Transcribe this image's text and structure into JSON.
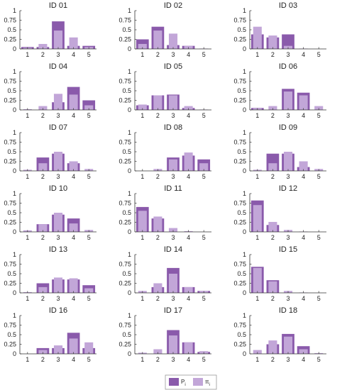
{
  "colors": {
    "p": "#8a5aab",
    "pi": "#c2a6d8",
    "axis": "#333333"
  },
  "legend": {
    "p_label": "P",
    "p_sub": "i",
    "pi_label": "π",
    "pi_sub": "i"
  },
  "chart_data": [
    {
      "type": "bar",
      "title": "ID 01",
      "categories": [
        "1",
        "2",
        "3",
        "4",
        "5"
      ],
      "ylim": [
        0,
        1
      ],
      "yticks": [
        "0",
        "0.25",
        "0.5",
        "0.75",
        "1"
      ],
      "series": [
        {
          "name": "P",
          "values": [
            0.05,
            0.05,
            0.72,
            0.08,
            0.08
          ]
        },
        {
          "name": "π",
          "values": [
            0.03,
            0.13,
            0.48,
            0.3,
            0.05
          ]
        }
      ]
    },
    {
      "type": "bar",
      "title": "ID 02",
      "categories": [
        "1",
        "2",
        "3",
        "4",
        "5"
      ],
      "ylim": [
        0,
        1
      ],
      "yticks": [
        "0",
        "0.25",
        "0.5",
        "0.75",
        "1"
      ],
      "series": [
        {
          "name": "P",
          "values": [
            0.25,
            0.58,
            0.1,
            0.08,
            0.0
          ]
        },
        {
          "name": "π",
          "values": [
            0.13,
            0.48,
            0.4,
            0.08,
            0.01
          ]
        }
      ]
    },
    {
      "type": "bar",
      "title": "ID 03",
      "categories": [
        "1",
        "2",
        "3",
        "4",
        "5"
      ],
      "ylim": [
        0,
        1
      ],
      "yticks": [
        "0",
        "0.25",
        "0.5",
        "0.75",
        "1"
      ],
      "series": [
        {
          "name": "P",
          "values": [
            0.38,
            0.3,
            0.38,
            0.0,
            0.0
          ]
        },
        {
          "name": "π",
          "values": [
            0.58,
            0.35,
            0.08,
            0.01,
            0.0
          ]
        }
      ]
    },
    {
      "type": "bar",
      "title": "ID 04",
      "categories": [
        "1",
        "2",
        "3",
        "4",
        "5"
      ],
      "ylim": [
        0,
        1
      ],
      "yticks": [
        "0",
        "0.25",
        "0.5",
        "0.75",
        "1"
      ],
      "series": [
        {
          "name": "P",
          "values": [
            0.0,
            0.0,
            0.2,
            0.6,
            0.25
          ]
        },
        {
          "name": "π",
          "values": [
            0.02,
            0.1,
            0.42,
            0.4,
            0.12
          ]
        }
      ]
    },
    {
      "type": "bar",
      "title": "ID 05",
      "categories": [
        "1",
        "2",
        "3",
        "4",
        "5"
      ],
      "ylim": [
        0,
        1
      ],
      "yticks": [
        "0",
        "0.25",
        "0.5",
        "0.75",
        "1"
      ],
      "series": [
        {
          "name": "P",
          "values": [
            0.12,
            0.38,
            0.4,
            0.05,
            0.0
          ]
        },
        {
          "name": "π",
          "values": [
            0.14,
            0.38,
            0.38,
            0.1,
            0.01
          ]
        }
      ]
    },
    {
      "type": "bar",
      "title": "ID 06",
      "categories": [
        "1",
        "2",
        "3",
        "4",
        "5"
      ],
      "ylim": [
        0,
        1
      ],
      "yticks": [
        "0",
        "0.25",
        "0.5",
        "0.75",
        "1"
      ],
      "series": [
        {
          "name": "P",
          "values": [
            0.05,
            0.0,
            0.55,
            0.45,
            0.0
          ]
        },
        {
          "name": "π",
          "values": [
            0.04,
            0.1,
            0.48,
            0.38,
            0.1
          ]
        }
      ]
    },
    {
      "type": "bar",
      "title": "ID 07",
      "categories": [
        "1",
        "2",
        "3",
        "4",
        "5"
      ],
      "ylim": [
        0,
        1
      ],
      "yticks": [
        "0",
        "0.25",
        "0.5",
        "0.75",
        "1"
      ],
      "series": [
        {
          "name": "P",
          "values": [
            0.0,
            0.35,
            0.45,
            0.2,
            0.0
          ]
        },
        {
          "name": "π",
          "values": [
            0.03,
            0.2,
            0.5,
            0.25,
            0.05
          ]
        }
      ]
    },
    {
      "type": "bar",
      "title": "ID 08",
      "categories": [
        "1",
        "2",
        "3",
        "4",
        "5"
      ],
      "ylim": [
        0,
        1
      ],
      "yticks": [
        "0",
        "0.25",
        "0.5",
        "0.75",
        "1"
      ],
      "series": [
        {
          "name": "P",
          "values": [
            0.0,
            0.0,
            0.35,
            0.4,
            0.3
          ]
        },
        {
          "name": "π",
          "values": [
            0.0,
            0.05,
            0.3,
            0.48,
            0.2
          ]
        }
      ]
    },
    {
      "type": "bar",
      "title": "ID 09",
      "categories": [
        "1",
        "2",
        "3",
        "4",
        "5"
      ],
      "ylim": [
        0,
        1
      ],
      "yticks": [
        "0",
        "0.25",
        "0.5",
        "0.75",
        "1"
      ],
      "series": [
        {
          "name": "P",
          "values": [
            0.0,
            0.45,
            0.45,
            0.1,
            0.0
          ]
        },
        {
          "name": "π",
          "values": [
            0.03,
            0.2,
            0.5,
            0.25,
            0.05
          ]
        }
      ]
    },
    {
      "type": "bar",
      "title": "ID 10",
      "categories": [
        "1",
        "2",
        "3",
        "4",
        "5"
      ],
      "ylim": [
        0,
        1
      ],
      "yticks": [
        "0",
        "0.25",
        "0.5",
        "0.75",
        "1"
      ],
      "series": [
        {
          "name": "P",
          "values": [
            0.0,
            0.2,
            0.45,
            0.35,
            0.0
          ]
        },
        {
          "name": "π",
          "values": [
            0.04,
            0.2,
            0.5,
            0.22,
            0.05
          ]
        }
      ]
    },
    {
      "type": "bar",
      "title": "ID 11",
      "categories": [
        "1",
        "2",
        "3",
        "4",
        "5"
      ],
      "ylim": [
        0,
        1
      ],
      "yticks": [
        "0",
        "0.25",
        "0.5",
        "0.75",
        "1"
      ],
      "series": [
        {
          "name": "P",
          "values": [
            0.65,
            0.35,
            0.0,
            0.0,
            0.0
          ]
        },
        {
          "name": "π",
          "values": [
            0.55,
            0.4,
            0.1,
            0.02,
            0.0
          ]
        }
      ]
    },
    {
      "type": "bar",
      "title": "ID 12",
      "categories": [
        "1",
        "2",
        "3",
        "4",
        "5"
      ],
      "ylim": [
        0,
        1
      ],
      "yticks": [
        "0",
        "0.25",
        "0.5",
        "0.75",
        "1"
      ],
      "series": [
        {
          "name": "P",
          "values": [
            0.82,
            0.18,
            0.0,
            0.0,
            0.0
          ]
        },
        {
          "name": "π",
          "values": [
            0.7,
            0.26,
            0.05,
            0.01,
            0.0
          ]
        }
      ]
    },
    {
      "type": "bar",
      "title": "ID 13",
      "categories": [
        "1",
        "2",
        "3",
        "4",
        "5"
      ],
      "ylim": [
        0,
        1
      ],
      "yticks": [
        "0",
        "0.25",
        "0.5",
        "0.75",
        "1"
      ],
      "series": [
        {
          "name": "P",
          "values": [
            0.0,
            0.25,
            0.35,
            0.35,
            0.2
          ]
        },
        {
          "name": "π",
          "values": [
            0.02,
            0.15,
            0.4,
            0.38,
            0.12
          ]
        }
      ]
    },
    {
      "type": "bar",
      "title": "ID 14",
      "categories": [
        "1",
        "2",
        "3",
        "4",
        "5"
      ],
      "ylim": [
        0,
        1
      ],
      "yticks": [
        "0",
        "0.25",
        "0.5",
        "0.75",
        "1"
      ],
      "series": [
        {
          "name": "P",
          "values": [
            0.0,
            0.15,
            0.65,
            0.15,
            0.05
          ]
        },
        {
          "name": "π",
          "values": [
            0.05,
            0.25,
            0.5,
            0.15,
            0.05
          ]
        }
      ]
    },
    {
      "type": "bar",
      "title": "ID 15",
      "categories": [
        "1",
        "2",
        "3",
        "4",
        "5"
      ],
      "ylim": [
        0,
        1
      ],
      "yticks": [
        "0",
        "0.25",
        "0.5",
        "0.75",
        "1"
      ],
      "series": [
        {
          "name": "P",
          "values": [
            0.68,
            0.33,
            0.0,
            0.0,
            0.0
          ]
        },
        {
          "name": "π",
          "values": [
            0.65,
            0.3,
            0.05,
            0.01,
            0.0
          ]
        }
      ]
    },
    {
      "type": "bar",
      "title": "ID 16",
      "categories": [
        "1",
        "2",
        "3",
        "4",
        "5"
      ],
      "ylim": [
        0,
        1
      ],
      "yticks": [
        "0",
        "0.25",
        "0.5",
        "0.75",
        "1"
      ],
      "series": [
        {
          "name": "P",
          "values": [
            0.0,
            0.15,
            0.15,
            0.55,
            0.15
          ]
        },
        {
          "name": "π",
          "values": [
            0.0,
            0.1,
            0.22,
            0.4,
            0.3
          ]
        }
      ]
    },
    {
      "type": "bar",
      "title": "ID 17",
      "categories": [
        "1",
        "2",
        "3",
        "4",
        "5"
      ],
      "ylim": [
        0,
        1
      ],
      "yticks": [
        "0",
        "0.25",
        "0.5",
        "0.75",
        "1"
      ],
      "series": [
        {
          "name": "P",
          "values": [
            0.0,
            0.0,
            0.62,
            0.3,
            0.05
          ]
        },
        {
          "name": "π",
          "values": [
            0.03,
            0.12,
            0.48,
            0.3,
            0.07
          ]
        }
      ]
    },
    {
      "type": "bar",
      "title": "ID 18",
      "categories": [
        "1",
        "2",
        "3",
        "4",
        "5"
      ],
      "ylim": [
        0,
        1
      ],
      "yticks": [
        "0",
        "0.25",
        "0.5",
        "0.75",
        "1"
      ],
      "series": [
        {
          "name": "P",
          "values": [
            0.0,
            0.25,
            0.52,
            0.2,
            0.0
          ]
        },
        {
          "name": "π",
          "values": [
            0.1,
            0.35,
            0.45,
            0.12,
            0.02
          ]
        }
      ]
    }
  ]
}
